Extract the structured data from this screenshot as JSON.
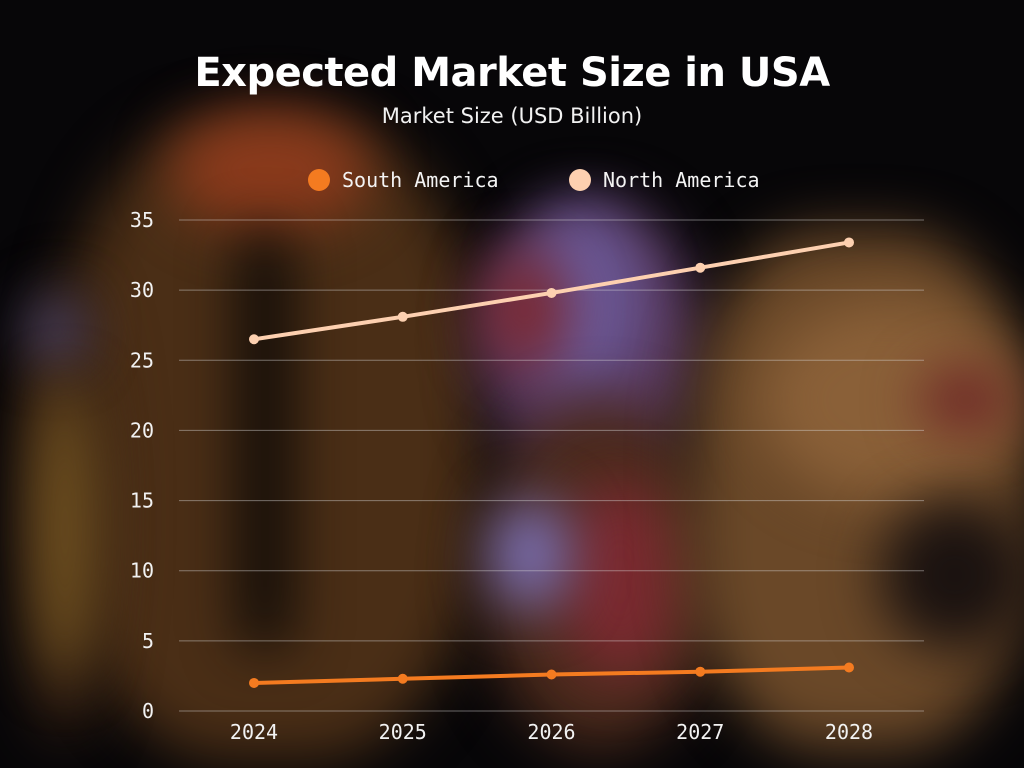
{
  "chart_data": {
    "type": "line",
    "title": "Expected Market Size in USA",
    "subtitle": "Market Size (USD Billion)",
    "xlabel": "",
    "ylabel": "",
    "categories": [
      "2024",
      "2025",
      "2026",
      "2027",
      "2028"
    ],
    "ylim": [
      0,
      35
    ],
    "yticks": [
      "0",
      "5",
      "10",
      "15",
      "20",
      "25",
      "30",
      "35"
    ],
    "grid": true,
    "legend_position": "top-center",
    "series": [
      {
        "name": "South America",
        "color": "#F47B20",
        "values": [
          2.0,
          2.3,
          2.6,
          2.8,
          3.1
        ]
      },
      {
        "name": "North America",
        "color": "#FDD0B0",
        "values": [
          26.5,
          28.1,
          29.8,
          31.6,
          33.4
        ]
      }
    ]
  }
}
